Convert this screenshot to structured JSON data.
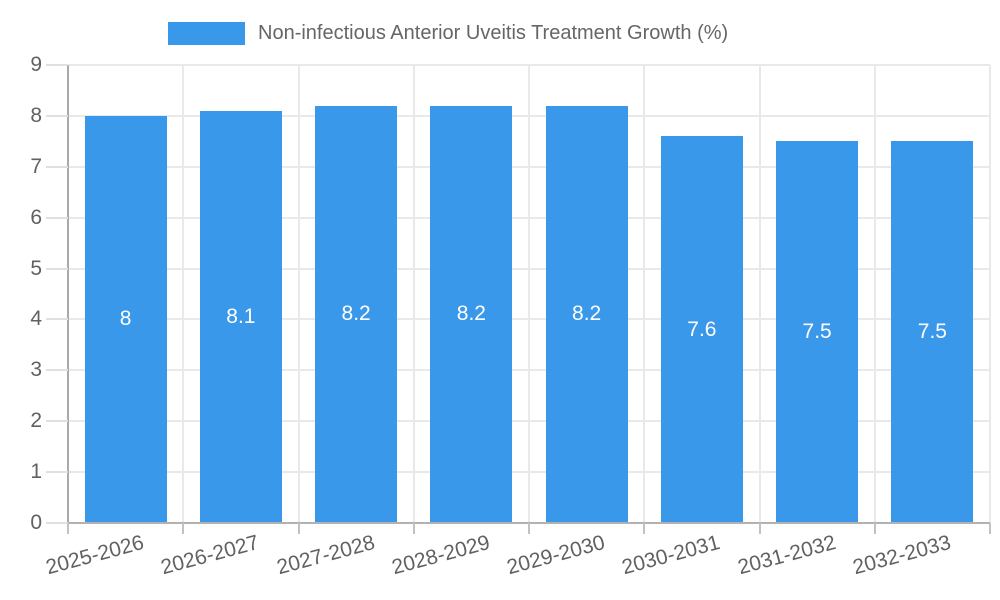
{
  "chart_data": {
    "type": "bar",
    "title": "",
    "legend": {
      "position": "top",
      "label": "Non-infectious Anterior Uveitis Treatment Growth (%)"
    },
    "categories": [
      "2025-2026",
      "2026-2027",
      "2027-2028",
      "2028-2029",
      "2029-2030",
      "2030-2031",
      "2031-2032",
      "2032-2033"
    ],
    "values": [
      8,
      8.1,
      8.2,
      8.2,
      8.2,
      7.6,
      7.5,
      7.5
    ],
    "value_labels": [
      "8",
      "8.1",
      "8.2",
      "8.2",
      "8.2",
      "7.6",
      "7.5",
      "7.5"
    ],
    "xlabel": "",
    "ylabel": "",
    "ylim": [
      0,
      9
    ],
    "y_ticks": [
      "0",
      "1",
      "2",
      "3",
      "4",
      "5",
      "6",
      "7",
      "8",
      "9"
    ],
    "grid": true,
    "x_label_rotation_deg": -15,
    "colors": {
      "bar": "#3a98eb",
      "grid": "#e9e9e9",
      "axis": "#a9a9a9",
      "baseline": "#b2b2b2",
      "y_tick": "#e0e0e0",
      "x_tick": "#c2c2c2",
      "axis_text": "#616161",
      "legend_text": "#666666",
      "value_label": "#ffffff",
      "background": "#ffffff"
    }
  }
}
